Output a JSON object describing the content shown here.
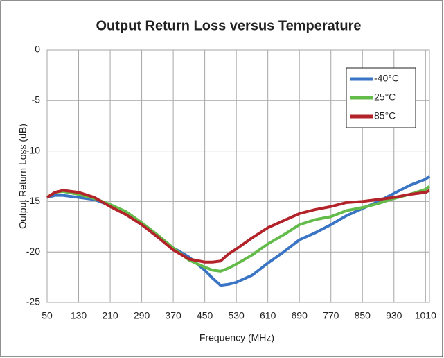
{
  "chart_data": {
    "type": "line",
    "title": "Output Return Loss versus Temperature",
    "x_label": "Frequency (MHz)",
    "y_label": "Output Return Loss (dB)",
    "x": [
      50,
      70,
      90,
      130,
      170,
      210,
      250,
      290,
      330,
      370,
      410,
      450,
      470,
      490,
      510,
      530,
      570,
      610,
      650,
      690,
      730,
      770,
      810,
      850,
      890,
      930,
      970,
      1010,
      1020
    ],
    "series": [
      {
        "name": "-40°C",
        "color": "#3a74c4",
        "values": [
          -14.6,
          -14.4,
          -14.4,
          -14.6,
          -14.8,
          -15.4,
          -16.2,
          -17.3,
          -18.4,
          -19.6,
          -20.5,
          -21.8,
          -22.6,
          -23.3,
          -23.2,
          -23.0,
          -22.3,
          -21.1,
          -20.0,
          -18.8,
          -18.1,
          -17.3,
          -16.4,
          -15.7,
          -15.0,
          -14.2,
          -13.4,
          -12.8,
          -12.5
        ]
      },
      {
        "name": "25°C",
        "color": "#63bb4a",
        "values": [
          -14.6,
          -14.1,
          -14.0,
          -14.3,
          -14.7,
          -15.3,
          -16.0,
          -17.1,
          -18.3,
          -19.6,
          -20.8,
          -21.5,
          -21.8,
          -21.9,
          -21.6,
          -21.2,
          -20.3,
          -19.2,
          -18.3,
          -17.3,
          -16.8,
          -16.5,
          -15.9,
          -15.6,
          -15.2,
          -14.7,
          -14.3,
          -13.8,
          -13.5
        ]
      },
      {
        "name": "85°C",
        "color": "#b3242a",
        "values": [
          -14.6,
          -14.1,
          -13.9,
          -14.1,
          -14.6,
          -15.5,
          -16.3,
          -17.3,
          -18.5,
          -19.8,
          -20.7,
          -21.0,
          -21.0,
          -20.9,
          -20.2,
          -19.7,
          -18.6,
          -17.6,
          -16.9,
          -16.2,
          -15.8,
          -15.5,
          -15.1,
          -15.0,
          -14.8,
          -14.6,
          -14.3,
          -14.1,
          -13.9
        ]
      }
    ],
    "xlim": [
      50,
      1020
    ],
    "xticks": [
      50,
      130,
      210,
      290,
      370,
      450,
      530,
      610,
      690,
      770,
      850,
      930,
      1010
    ],
    "ylim": [
      -25,
      0
    ],
    "yticks": [
      0,
      -5,
      -10,
      -15,
      -20,
      -25
    ],
    "grid": true,
    "legend": "upper right"
  }
}
